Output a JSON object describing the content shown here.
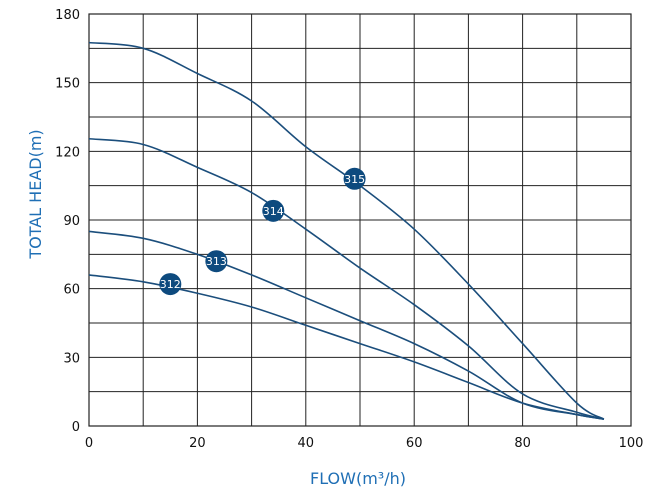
{
  "chart_data": {
    "type": "line",
    "xlabel": "FLOW(m³/h)",
    "ylabel": "TOTAL HEAD(m)",
    "xlim": [
      0,
      100
    ],
    "ylim": [
      0,
      180
    ],
    "xticks": [
      "0",
      "20",
      "40",
      "60",
      "80",
      "100"
    ],
    "yticks": [
      "0",
      "30",
      "60",
      "90",
      "120",
      "150",
      "180"
    ],
    "grid": true,
    "series": [
      {
        "name": "312",
        "points": [
          [
            0,
            66
          ],
          [
            10,
            63
          ],
          [
            20,
            58
          ],
          [
            30,
            52
          ],
          [
            40,
            44
          ],
          [
            50,
            36
          ],
          [
            60,
            28
          ],
          [
            70,
            19
          ],
          [
            80,
            10
          ],
          [
            90,
            5
          ],
          [
            95,
            3
          ]
        ],
        "label_at": [
          15,
          62
        ]
      },
      {
        "name": "313",
        "points": [
          [
            0,
            85
          ],
          [
            10,
            82
          ],
          [
            20,
            75
          ],
          [
            30,
            66
          ],
          [
            40,
            56
          ],
          [
            50,
            46
          ],
          [
            60,
            36
          ],
          [
            70,
            24
          ],
          [
            80,
            10
          ],
          [
            90,
            5
          ],
          [
            95,
            3
          ]
        ],
        "label_at": [
          23.5,
          72
        ]
      },
      {
        "name": "314",
        "points": [
          [
            0,
            125.5
          ],
          [
            10,
            123
          ],
          [
            20,
            113
          ],
          [
            30,
            102
          ],
          [
            40,
            86
          ],
          [
            50,
            69
          ],
          [
            60,
            53
          ],
          [
            70,
            35
          ],
          [
            80,
            14
          ],
          [
            90,
            6
          ],
          [
            95,
            3
          ]
        ],
        "label_at": [
          34,
          94
        ]
      },
      {
        "name": "315",
        "points": [
          [
            0,
            167.5
          ],
          [
            10,
            165
          ],
          [
            20,
            154
          ],
          [
            30,
            142
          ],
          [
            40,
            122
          ],
          [
            50,
            105
          ],
          [
            60,
            86
          ],
          [
            70,
            62
          ],
          [
            80,
            36
          ],
          [
            90,
            10
          ],
          [
            95,
            3
          ]
        ],
        "label_at": [
          49,
          108
        ]
      }
    ]
  },
  "colors": {
    "curve": "#1b4e7c",
    "badge": "#0d4a7e",
    "axis_title": "#1f6fb5",
    "grid": "#222222"
  }
}
